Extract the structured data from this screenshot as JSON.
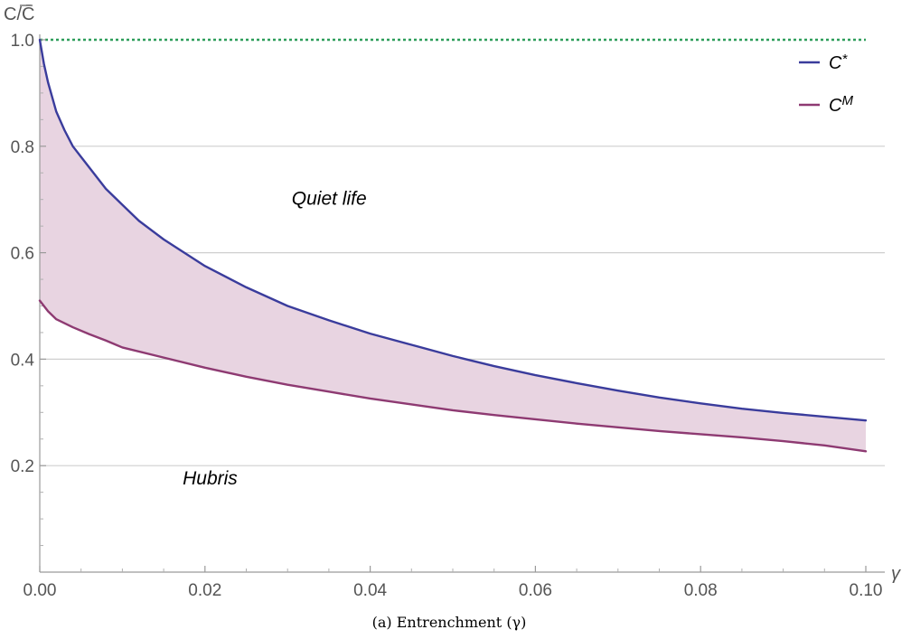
{
  "chart_data": {
    "type": "area",
    "ylabel": "C/C̄",
    "xlabel": "γ",
    "caption": "(a) Entrenchment (γ)",
    "xlim": [
      0,
      0.102
    ],
    "ylim": [
      0,
      1
    ],
    "x_ticks": [
      0.0,
      0.02,
      0.04,
      0.06,
      0.08,
      0.1
    ],
    "x_tick_labels": [
      "0.00",
      "0.02",
      "0.04",
      "0.06",
      "0.08",
      "0.10"
    ],
    "y_ticks": [
      0.2,
      0.4,
      0.6,
      0.8,
      1.0
    ],
    "y_tick_labels": [
      "0.2",
      "0.4",
      "0.6",
      "0.8",
      "1.0"
    ],
    "grid": "horizontal",
    "legend_position": "top-right",
    "reference_line": {
      "y": 1.0,
      "style": "dotted",
      "color": "#2e9e5b"
    },
    "fill_between_series": {
      "color": "#e8d4e1"
    },
    "series": [
      {
        "name": "C*",
        "color": "#3a3c9c",
        "x": [
          0,
          0.0005,
          0.001,
          0.002,
          0.003,
          0.004,
          0.005,
          0.006,
          0.008,
          0.01,
          0.012,
          0.015,
          0.02,
          0.025,
          0.03,
          0.035,
          0.04,
          0.045,
          0.05,
          0.055,
          0.06,
          0.065,
          0.07,
          0.075,
          0.08,
          0.085,
          0.09,
          0.095,
          0.1
        ],
        "values": [
          1.0,
          0.955,
          0.92,
          0.865,
          0.83,
          0.8,
          0.78,
          0.76,
          0.72,
          0.69,
          0.66,
          0.625,
          0.575,
          0.535,
          0.5,
          0.473,
          0.448,
          0.427,
          0.406,
          0.387,
          0.37,
          0.355,
          0.341,
          0.328,
          0.317,
          0.307,
          0.299,
          0.292,
          0.285
        ]
      },
      {
        "name": "C^M",
        "color": "#8e3a72",
        "x": [
          0,
          0.001,
          0.002,
          0.004,
          0.006,
          0.008,
          0.01,
          0.015,
          0.02,
          0.025,
          0.03,
          0.035,
          0.04,
          0.045,
          0.05,
          0.055,
          0.06,
          0.065,
          0.07,
          0.075,
          0.08,
          0.085,
          0.09,
          0.095,
          0.1
        ],
        "values": [
          0.51,
          0.49,
          0.475,
          0.46,
          0.447,
          0.435,
          0.422,
          0.403,
          0.384,
          0.367,
          0.352,
          0.339,
          0.326,
          0.315,
          0.304,
          0.295,
          0.287,
          0.279,
          0.272,
          0.265,
          0.259,
          0.253,
          0.246,
          0.238,
          0.227
        ]
      }
    ],
    "annotations": [
      {
        "text": "Quiet life",
        "x": 0.0305,
        "y": 0.69
      },
      {
        "text": "Hubris",
        "x": 0.0173,
        "y": 0.165
      }
    ]
  }
}
